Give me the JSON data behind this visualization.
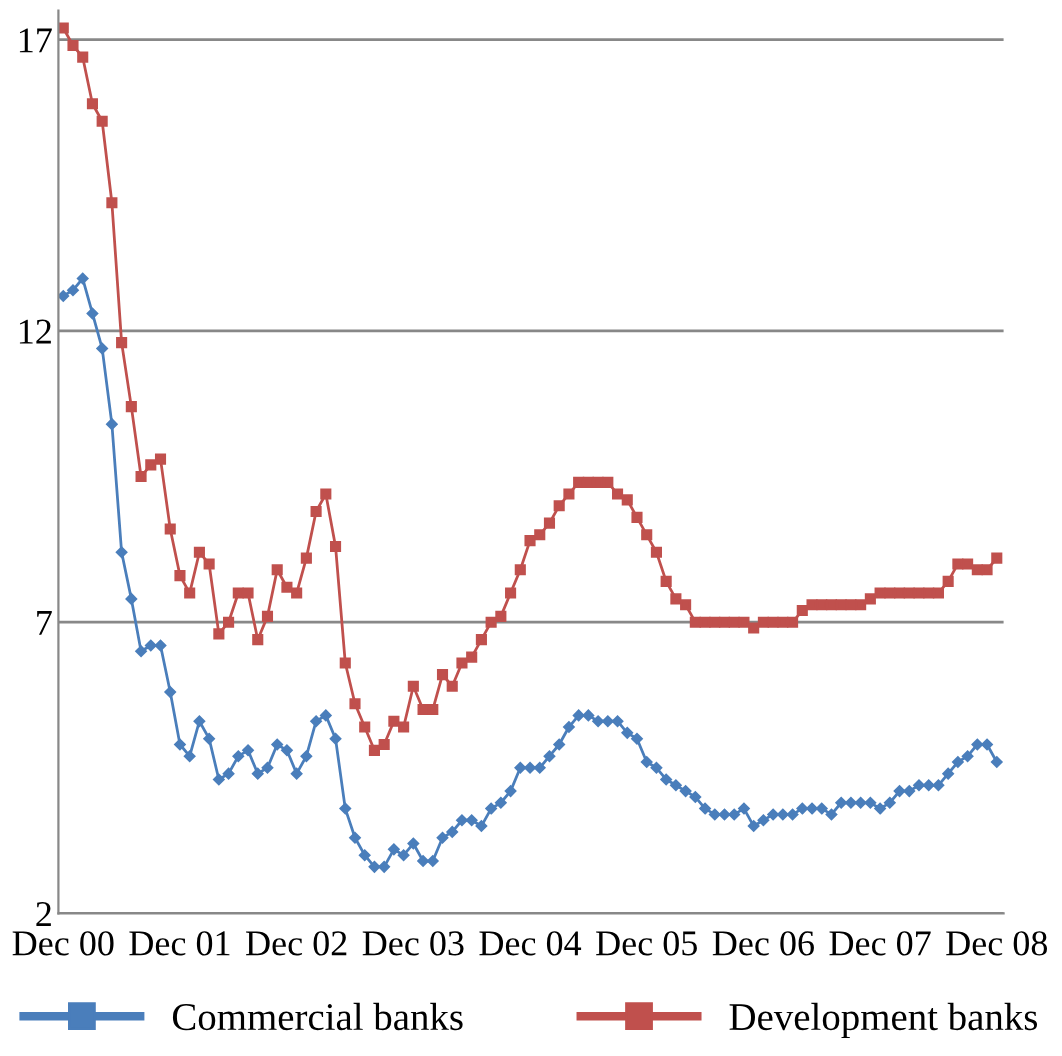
{
  "chart_data": {
    "type": "line",
    "categories": [
      "Dec 00",
      null,
      null,
      null,
      null,
      null,
      null,
      null,
      null,
      null,
      null,
      null,
      "Dec 01",
      null,
      null,
      null,
      null,
      null,
      null,
      null,
      null,
      null,
      null,
      null,
      "Dec 02",
      null,
      null,
      null,
      null,
      null,
      null,
      null,
      null,
      null,
      null,
      null,
      "Dec 03",
      null,
      null,
      null,
      null,
      null,
      null,
      null,
      null,
      null,
      null,
      null,
      "Dec 04",
      null,
      null,
      null,
      null,
      null,
      null,
      null,
      null,
      null,
      null,
      null,
      "Dec 05",
      null,
      null,
      null,
      null,
      null,
      null,
      null,
      null,
      null,
      null,
      null,
      "Dec 06",
      null,
      null,
      null,
      null,
      null,
      null,
      null,
      null,
      null,
      null,
      null,
      "Dec 07",
      null,
      null,
      null,
      null,
      null,
      null,
      null,
      null,
      null,
      null,
      null,
      "Dec 08"
    ],
    "series": [
      {
        "name": "Commercial banks",
        "color": "#4a7ebb",
        "marker": "diamond",
        "values": [
          12.6,
          12.7,
          12.9,
          12.3,
          11.7,
          10.4,
          8.2,
          7.4,
          6.5,
          6.6,
          6.6,
          5.8,
          4.9,
          4.7,
          5.3,
          5.0,
          4.3,
          4.4,
          4.7,
          4.8,
          4.4,
          4.5,
          4.9,
          4.8,
          4.4,
          4.7,
          5.3,
          5.4,
          5.0,
          3.8,
          3.3,
          3.0,
          2.8,
          2.8,
          3.1,
          3.0,
          3.2,
          2.9,
          2.9,
          3.3,
          3.4,
          3.6,
          3.6,
          3.5,
          3.8,
          3.9,
          4.1,
          4.5,
          4.5,
          4.5,
          4.7,
          4.9,
          5.2,
          5.4,
          5.4,
          5.3,
          5.3,
          5.3,
          5.1,
          5.0,
          4.6,
          4.5,
          4.3,
          4.2,
          4.1,
          4.0,
          3.8,
          3.7,
          3.7,
          3.7,
          3.8,
          3.5,
          3.6,
          3.7,
          3.7,
          3.7,
          3.8,
          3.8,
          3.8,
          3.7,
          3.9,
          3.9,
          3.9,
          3.9,
          3.8,
          3.9,
          4.1,
          4.1,
          4.2,
          4.2,
          4.2,
          4.4,
          4.6,
          4.7,
          4.9,
          4.9,
          4.6
        ]
      },
      {
        "name": "Development banks",
        "color": "#c0504d",
        "marker": "square",
        "values": [
          17.2,
          16.9,
          16.7,
          15.9,
          15.6,
          14.2,
          11.8,
          10.7,
          9.5,
          9.7,
          9.8,
          8.6,
          7.8,
          7.5,
          8.2,
          8.0,
          6.8,
          7.0,
          7.5,
          7.5,
          6.7,
          7.1,
          7.9,
          7.6,
          7.5,
          8.1,
          8.9,
          9.2,
          8.3,
          6.3,
          5.6,
          5.2,
          4.8,
          4.9,
          5.3,
          5.2,
          5.9,
          5.5,
          5.5,
          6.1,
          5.9,
          6.3,
          6.4,
          6.7,
          7.0,
          7.1,
          7.5,
          7.9,
          8.4,
          8.5,
          8.7,
          9.0,
          9.2,
          9.4,
          9.4,
          9.4,
          9.4,
          9.2,
          9.1,
          8.8,
          8.5,
          8.2,
          7.7,
          7.4,
          7.3,
          7.0,
          7.0,
          7.0,
          7.0,
          7.0,
          7.0,
          6.9,
          7.0,
          7.0,
          7.0,
          7.0,
          7.2,
          7.3,
          7.3,
          7.3,
          7.3,
          7.3,
          7.3,
          7.4,
          7.5,
          7.5,
          7.5,
          7.5,
          7.5,
          7.5,
          7.5,
          7.7,
          8.0,
          8.0,
          7.9,
          7.9,
          8.1
        ]
      }
    ],
    "ylim": [
      2,
      17.5
    ],
    "yticks": [
      2,
      7,
      12,
      17
    ],
    "grid": "y",
    "legend": "bottom",
    "line_style": "solid"
  }
}
